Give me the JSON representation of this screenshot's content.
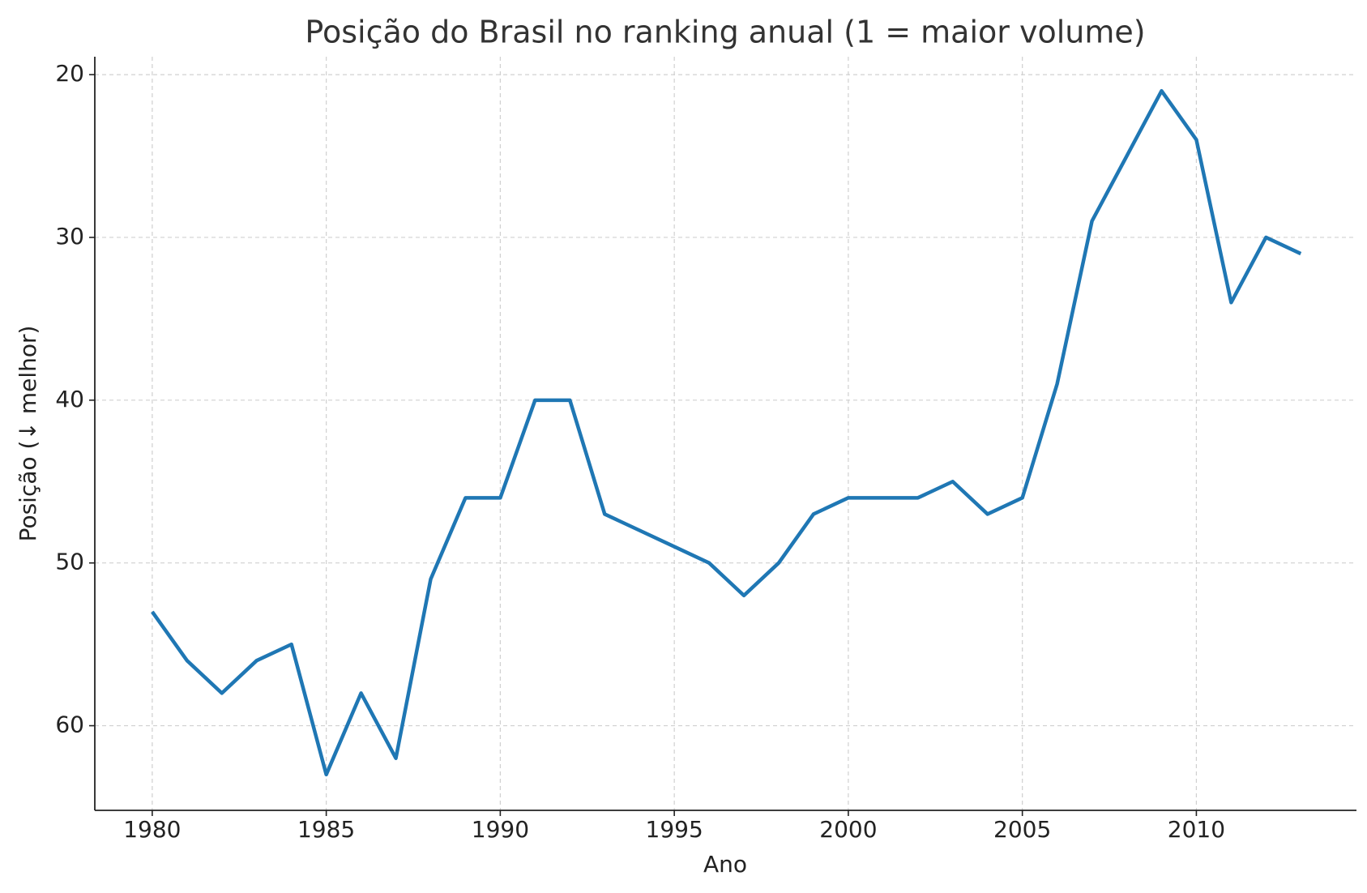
{
  "chart_data": {
    "type": "line",
    "title": "Posição do Brasil no ranking anual (1 = maior volume)",
    "x_label": "Ano",
    "y_label": "Posição (↓ melhor)",
    "x": [
      1980,
      1981,
      1982,
      1983,
      1984,
      1985,
      1986,
      1987,
      1988,
      1989,
      1990,
      1991,
      1992,
      1993,
      1994,
      1995,
      1996,
      1997,
      1998,
      1999,
      2000,
      2001,
      2002,
      2003,
      2004,
      2005,
      2006,
      2007,
      2008,
      2009,
      2010,
      2011,
      2012,
      2013
    ],
    "series": [
      {
        "name": "Posição",
        "color": "#1f77b4",
        "values": [
          53,
          56,
          58,
          56,
          55,
          63,
          58,
          62,
          51,
          46,
          46,
          40,
          40,
          47,
          48,
          49,
          50,
          52,
          50,
          47,
          46,
          46,
          46,
          45,
          47,
          46,
          39,
          29,
          25,
          21,
          24,
          34,
          30,
          31
        ]
      }
    ],
    "xlim": [
      1978.35,
      2014.6
    ],
    "xticks": [
      1980,
      1985,
      1990,
      1995,
      2000,
      2005,
      2010
    ],
    "ylim": [
      65.2,
      18.9
    ],
    "yticks": [
      20,
      30,
      40,
      50,
      60
    ],
    "grid": true
  }
}
